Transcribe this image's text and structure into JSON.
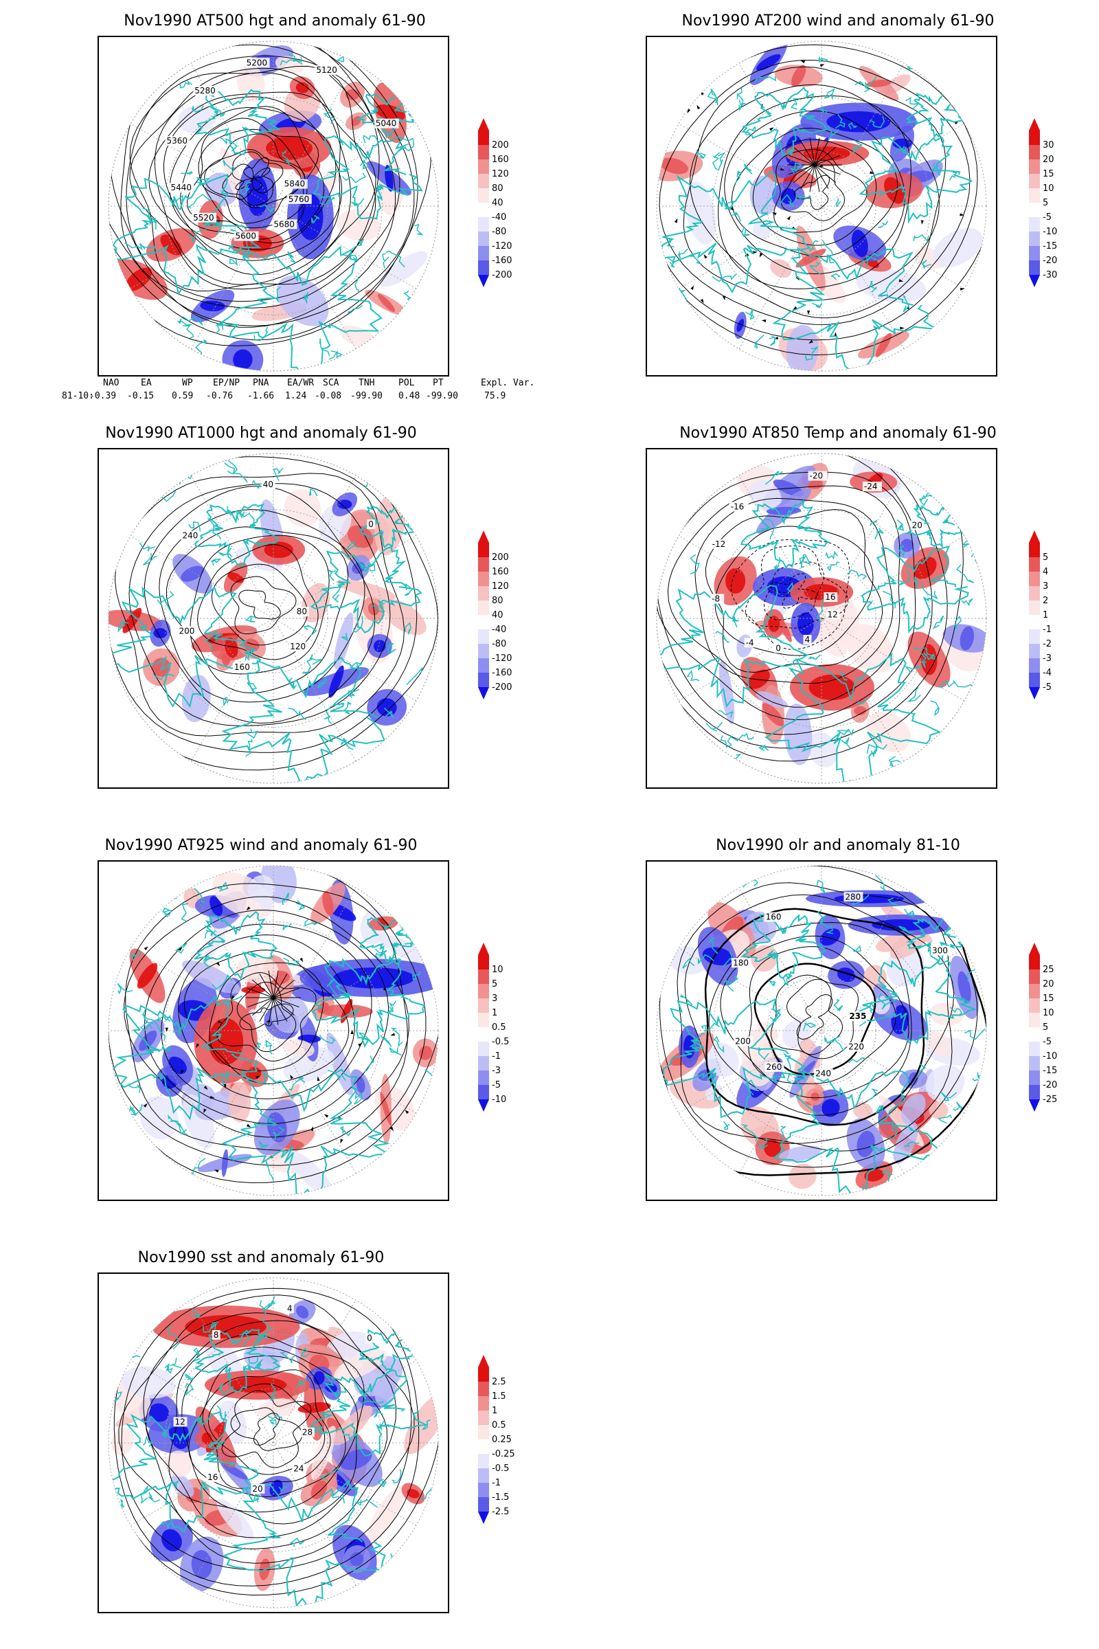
{
  "panels": [
    {
      "title": "Nov1990 AT500 hgt and anomaly 61-90",
      "colorbar": [
        "200",
        "160",
        "120",
        "80",
        "40",
        "-40",
        "-80",
        "-120",
        "-160",
        "-200"
      ],
      "contour_labels": [
        "5840",
        "5760",
        "5680",
        "5600",
        "5520",
        "5440",
        "5360",
        "5280",
        "5200",
        "5120",
        "5040"
      ]
    },
    {
      "title": "Nov1990 AT200 wind and anomaly 61-90",
      "colorbar": [
        "30",
        "20",
        "15",
        "10",
        "5",
        "-5",
        "-10",
        "-15",
        "-20",
        "-30"
      ],
      "contour_labels": []
    },
    {
      "title": "Nov1990 AT1000 hgt and anomaly 61-90",
      "colorbar": [
        "200",
        "160",
        "120",
        "80",
        "40",
        "-40",
        "-80",
        "-120",
        "-160",
        "-200"
      ],
      "contour_labels": [
        "80",
        "120",
        "160",
        "200",
        "240",
        "40",
        "0"
      ]
    },
    {
      "title": "Nov1990 AT850 Temp and anomaly 61-90",
      "colorbar": [
        "5",
        "4",
        "3",
        "2",
        "1",
        "-1",
        "-2",
        "-3",
        "-4",
        "-5"
      ],
      "contour_labels": [
        "16",
        "12",
        "4",
        "0",
        "-4",
        "-8",
        "-12",
        "-16",
        "-20",
        "-24",
        "20"
      ]
    },
    {
      "title": "Nov1990 AT925 wind and anomaly 61-90",
      "colorbar": [
        "10",
        "5",
        "3",
        "1",
        "0.5",
        "-0.5",
        "-1",
        "-3",
        "-5",
        "-10"
      ],
      "contour_labels": []
    },
    {
      "title": "Nov1990 olr and anomaly 81-10",
      "colorbar": [
        "25",
        "20",
        "15",
        "10",
        "5",
        "-5",
        "-10",
        "-15",
        "-20",
        "-25"
      ],
      "contour_labels": [
        "235",
        "220",
        "240",
        "260",
        "200",
        "180",
        "160",
        "280",
        "300"
      ]
    },
    {
      "title": "Nov1990 sst and anomaly 61-90",
      "colorbar": [
        "2.5",
        "1.5",
        "1",
        "0.5",
        "0.25",
        "-0.25",
        "-0.5",
        "-1",
        "-1.5",
        "-2.5"
      ],
      "contour_labels": [
        "28",
        "24",
        "20",
        "16",
        "12",
        "8",
        "4",
        "0"
      ]
    }
  ],
  "indices": {
    "headers": [
      "NAO",
      "EA",
      "WP",
      "EP/NP",
      "PNA",
      "EA/WR",
      "SCA",
      "TNH",
      "POL",
      "PT",
      "Expl. Var."
    ],
    "row_label": "81-10:",
    "values": [
      "-0.39",
      "-0.15",
      "0.59",
      "-0.76",
      "-1.66",
      "1.24",
      "-0.08",
      "-99.90",
      "0.48",
      "-99.90",
      "75.9"
    ]
  },
  "colors": {
    "positive_scale": [
      "#fbe7e6",
      "#f6c1c0",
      "#f0908f",
      "#e8585a",
      "#e01010"
    ],
    "negative_scale": [
      "#e7e7fb",
      "#bdbdf6",
      "#8e8ef0",
      "#5a5aea",
      "#1010e6"
    ],
    "coast": "#20c0c0",
    "contour": "#000000",
    "grid": "#a0a0a0"
  }
}
